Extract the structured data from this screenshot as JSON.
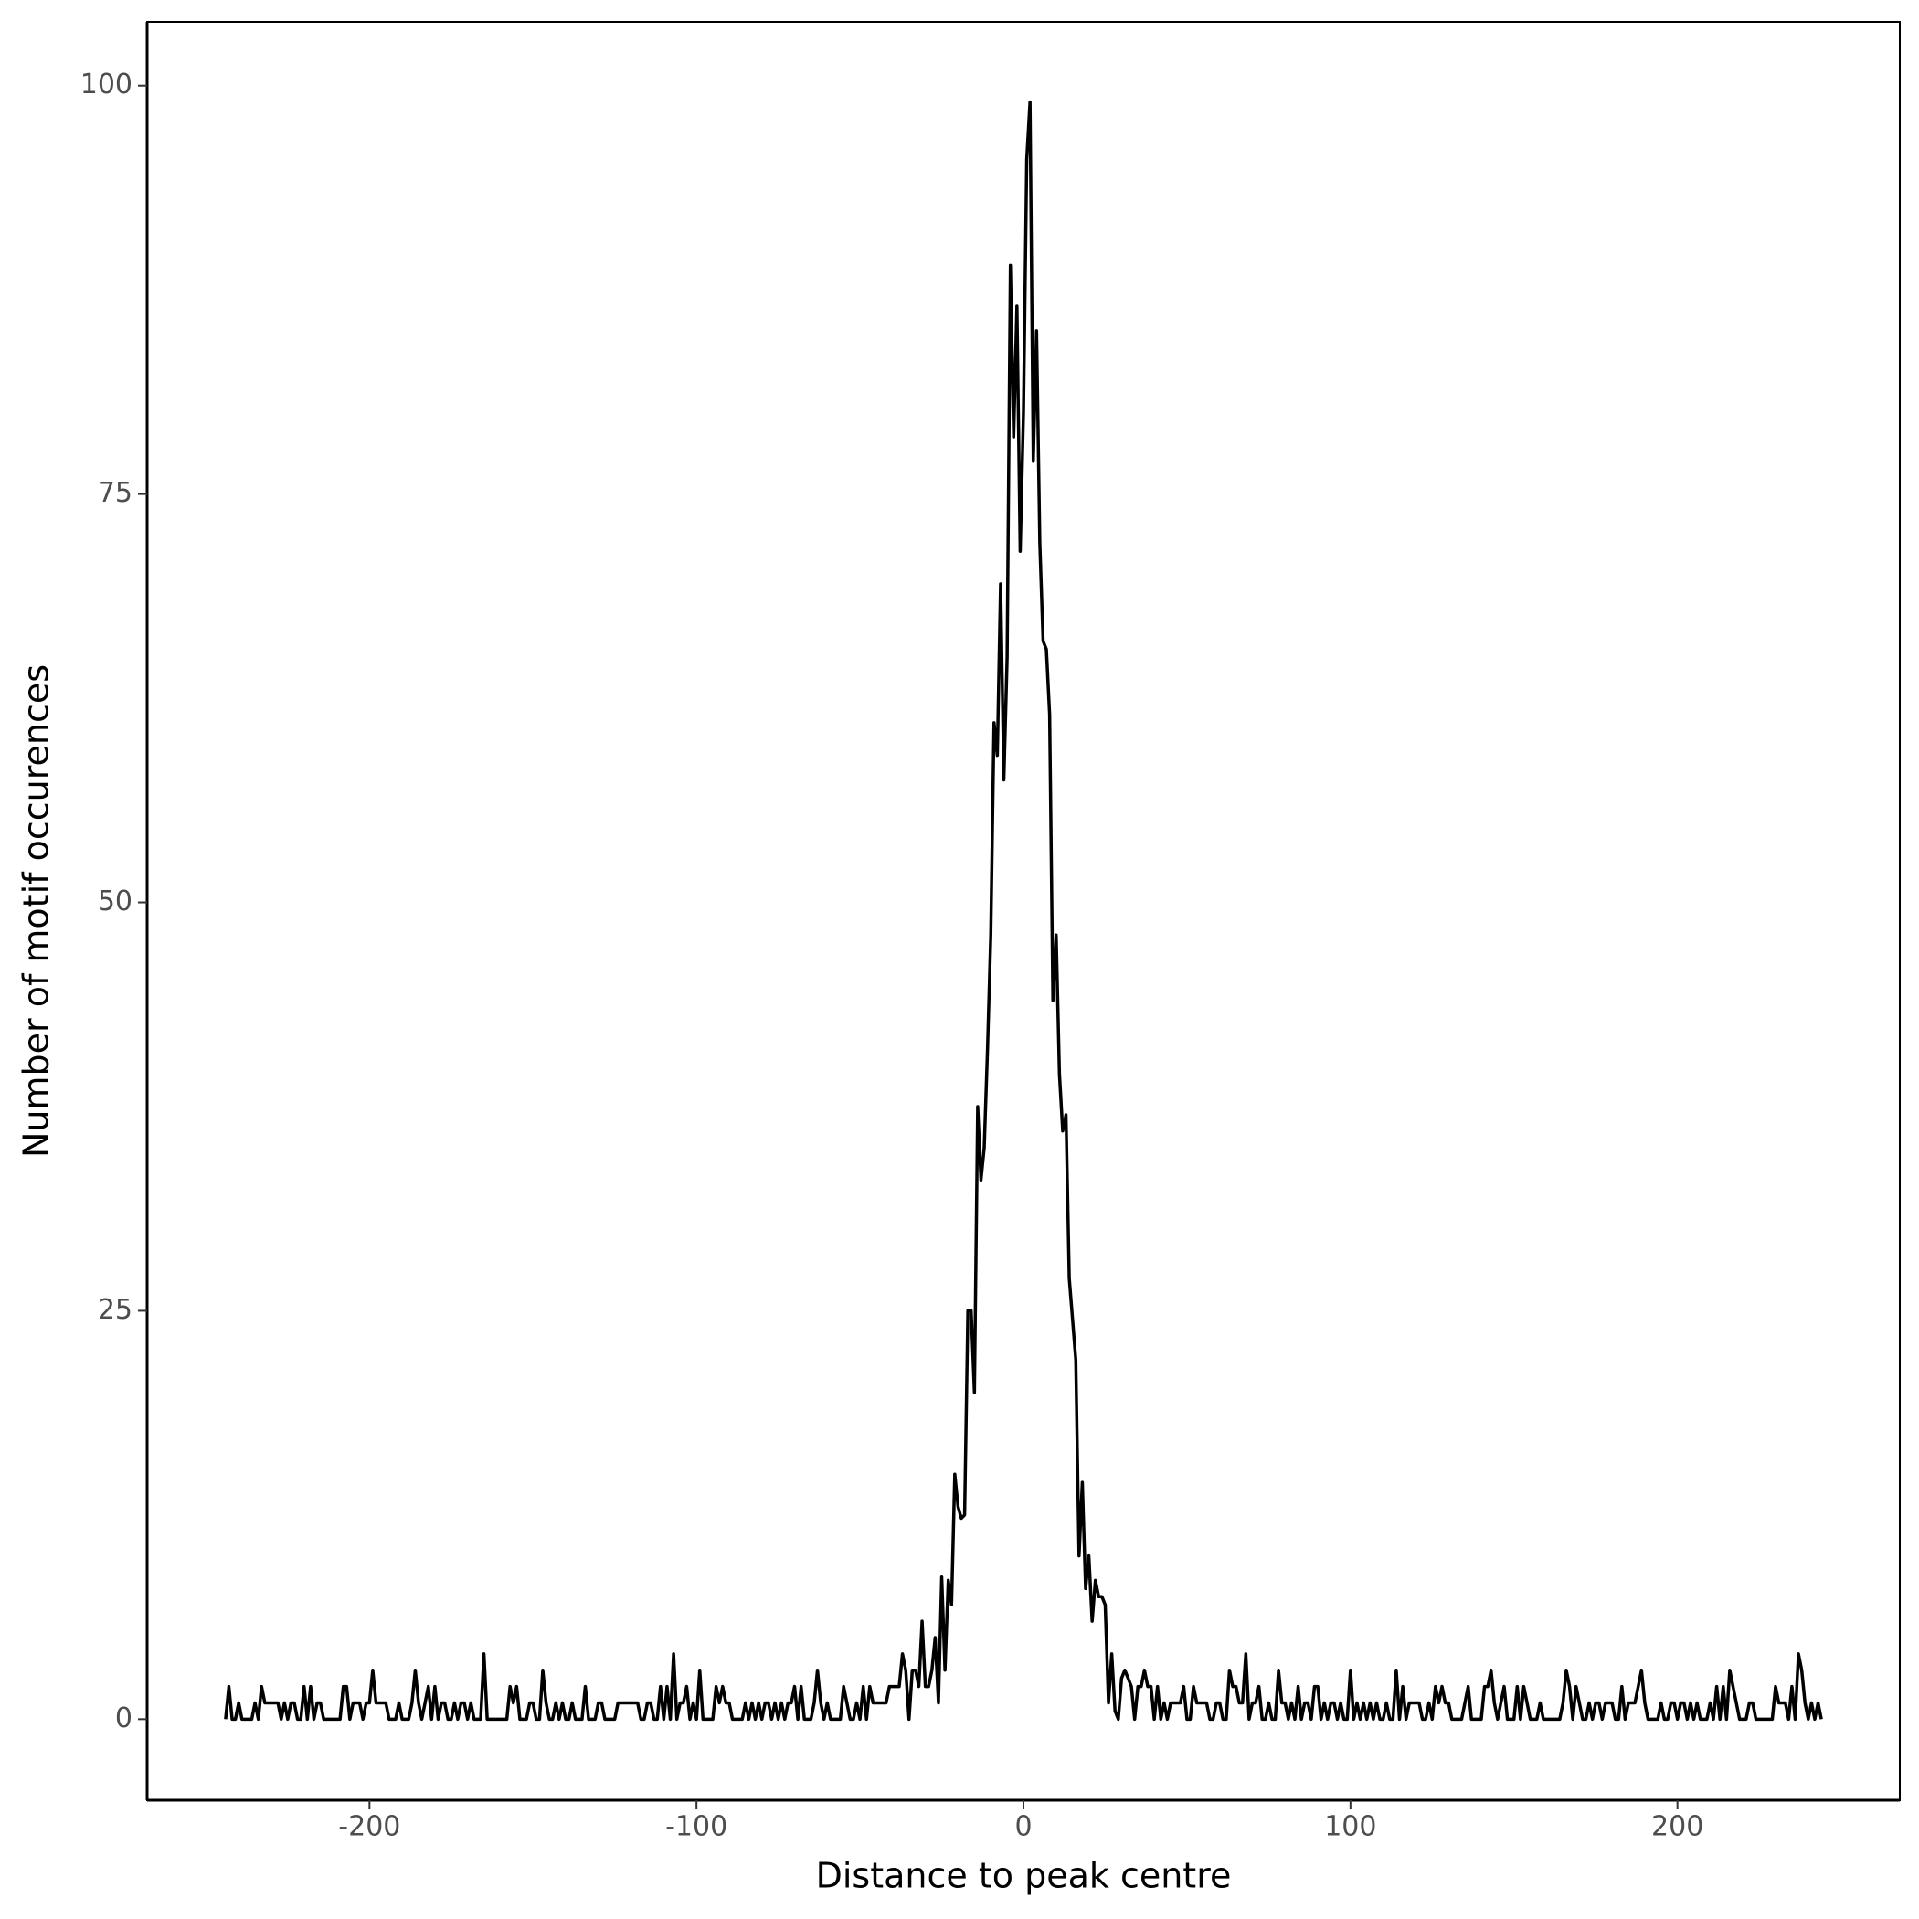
{
  "chart_data": {
    "type": "line",
    "x_label": "Distance to peak centre",
    "y_label": "Number of motif occurences",
    "color": "#000000",
    "grid": false,
    "xlim": [
      -268,
      268
    ],
    "ylim": [
      -4.96,
      103.9
    ],
    "xticks": [
      -200,
      -100,
      0,
      100,
      200
    ],
    "yticks": [
      0,
      25,
      50,
      75,
      100
    ],
    "x": [
      -244,
      -243,
      -242,
      -241,
      -240,
      -239,
      -238,
      -237,
      -236,
      -235,
      -234,
      -233,
      -232,
      -231,
      -230,
      -229,
      -228,
      -227,
      -226,
      -225,
      -224,
      -223,
      -222,
      -221,
      -220,
      -219,
      -218,
      -217,
      -216,
      -215,
      -214,
      -213,
      -212,
      -211,
      -210,
      -209,
      -208,
      -207,
      -206,
      -205,
      -204,
      -203,
      -202,
      -201,
      -200,
      -199,
      -198,
      -197,
      -196,
      -195,
      -194,
      -193,
      -192,
      -191,
      -190,
      -189,
      -188,
      -187,
      -186,
      -185,
      -184,
      -183,
      -182,
      -181,
      -180,
      -179,
      -178,
      -177,
      -176,
      -175,
      -174,
      -173,
      -172,
      -171,
      -170,
      -169,
      -168,
      -167,
      -166,
      -165,
      -164,
      -163,
      -162,
      -161,
      -160,
      -159,
      -158,
      -157,
      -156,
      -155,
      -154,
      -153,
      -152,
      -151,
      -150,
      -149,
      -148,
      -147,
      -146,
      -145,
      -144,
      -143,
      -142,
      -141,
      -140,
      -139,
      -138,
      -137,
      -136,
      -135,
      -134,
      -133,
      -132,
      -131,
      -130,
      -129,
      -128,
      -127,
      -126,
      -125,
      -124,
      -123,
      -122,
      -121,
      -120,
      -119,
      -118,
      -117,
      -116,
      -115,
      -114,
      -113,
      -112,
      -111,
      -110,
      -109,
      -108,
      -107,
      -106,
      -105,
      -104,
      -103,
      -102,
      -101,
      -100,
      -99,
      -98,
      -97,
      -96,
      -95,
      -94,
      -93,
      -92,
      -91,
      -90,
      -89,
      -88,
      -87,
      -86,
      -85,
      -84,
      -83,
      -82,
      -81,
      -80,
      -79,
      -78,
      -77,
      -76,
      -75,
      -74,
      -73,
      -72,
      -71,
      -70,
      -69,
      -68,
      -67,
      -66,
      -65,
      -64,
      -63,
      -62,
      -61,
      -60,
      -59,
      -58,
      -57,
      -56,
      -55,
      -54,
      -53,
      -52,
      -51,
      -50,
      -49,
      -48,
      -47,
      -46,
      -45,
      -44,
      -43,
      -42,
      -41,
      -40,
      -39,
      -38,
      -37,
      -36,
      -35,
      -34,
      -33,
      -32,
      -31,
      -30,
      -29,
      -28,
      -27,
      -26,
      -25,
      -24,
      -23,
      -22,
      -21,
      -20,
      -19,
      -18,
      -17,
      -16,
      -15,
      -14,
      -13,
      -12,
      -11,
      -10,
      -9,
      -8,
      -7,
      -6,
      -5,
      -4,
      -3,
      -2,
      -1,
      0,
      1,
      2,
      3,
      4,
      5,
      6,
      7,
      8,
      9,
      10,
      11,
      12,
      13,
      14,
      15,
      16,
      17,
      18,
      19,
      20,
      21,
      22,
      23,
      24,
      25,
      26,
      27,
      28,
      29,
      30,
      31,
      32,
      33,
      34,
      35,
      36,
      37,
      38,
      39,
      40,
      41,
      42,
      43,
      44,
      45,
      46,
      47,
      48,
      49,
      50,
      51,
      52,
      53,
      54,
      55,
      56,
      57,
      58,
      59,
      60,
      61,
      62,
      63,
      64,
      65,
      66,
      67,
      68,
      69,
      70,
      71,
      72,
      73,
      74,
      75,
      76,
      77,
      78,
      79,
      80,
      81,
      82,
      83,
      84,
      85,
      86,
      87,
      88,
      89,
      90,
      91,
      92,
      93,
      94,
      95,
      96,
      97,
      98,
      99,
      100,
      101,
      102,
      103,
      104,
      105,
      106,
      107,
      108,
      109,
      110,
      111,
      112,
      113,
      114,
      115,
      116,
      117,
      118,
      119,
      120,
      121,
      122,
      123,
      124,
      125,
      126,
      127,
      128,
      129,
      130,
      131,
      132,
      133,
      134,
      135,
      136,
      137,
      138,
      139,
      140,
      141,
      142,
      143,
      144,
      145,
      146,
      147,
      148,
      149,
      150,
      151,
      152,
      153,
      154,
      155,
      156,
      157,
      158,
      159,
      160,
      161,
      162,
      163,
      164,
      165,
      166,
      167,
      168,
      169,
      170,
      171,
      172,
      173,
      174,
      175,
      176,
      177,
      178,
      179,
      180,
      181,
      182,
      183,
      184,
      185,
      186,
      187,
      188,
      189,
      190,
      191,
      192,
      193,
      194,
      195,
      196,
      197,
      198,
      199,
      200,
      201,
      202,
      203,
      204,
      205,
      206,
      207,
      208,
      209,
      210,
      211,
      212,
      213,
      214,
      215,
      216,
      217,
      218,
      219,
      220,
      221,
      222,
      223,
      224,
      225,
      226,
      227,
      228,
      229,
      230,
      231,
      232,
      233,
      234,
      235,
      236,
      237,
      238,
      239,
      240,
      241,
      242,
      243,
      244
    ],
    "values": [
      0,
      2,
      0,
      0,
      1,
      0,
      0,
      0,
      0,
      1,
      0,
      2,
      1,
      1,
      1,
      1,
      1,
      0,
      1,
      0,
      1,
      1,
      0,
      0,
      2,
      0,
      2,
      0,
      1,
      1,
      0,
      0,
      0,
      0,
      0,
      0,
      2,
      2,
      0,
      1,
      1,
      1,
      0,
      1,
      1,
      3,
      1,
      1,
      1,
      1,
      0,
      0,
      0,
      1,
      0,
      0,
      0,
      1,
      3,
      1,
      0,
      1,
      2,
      0,
      2,
      0,
      1,
      1,
      0,
      0,
      1,
      0,
      1,
      1,
      0,
      1,
      0,
      0,
      0,
      4,
      0,
      0,
      0,
      0,
      0,
      0,
      0,
      2,
      1,
      2,
      0,
      0,
      0,
      1,
      1,
      0,
      0,
      3,
      1,
      0,
      0,
      1,
      0,
      1,
      0,
      0,
      1,
      0,
      0,
      0,
      2,
      0,
      0,
      0,
      1,
      1,
      0,
      0,
      0,
      0,
      1,
      1,
      1,
      1,
      1,
      1,
      1,
      0,
      0,
      1,
      1,
      0,
      0,
      2,
      0,
      2,
      0,
      4,
      0,
      1,
      1,
      2,
      0,
      1,
      0,
      3,
      0,
      0,
      0,
      0,
      2,
      1,
      2,
      1,
      1,
      0,
      0,
      0,
      0,
      1,
      0,
      1,
      0,
      1,
      0,
      1,
      1,
      0,
      1,
      0,
      1,
      0,
      1,
      1,
      2,
      0,
      2,
      0,
      0,
      0,
      1,
      3,
      1,
      0,
      1,
      0,
      0,
      0,
      0,
      2,
      1,
      0,
      0,
      1,
      0,
      2,
      0,
      2,
      1,
      1,
      1,
      1,
      1,
      2,
      2,
      2,
      2,
      4,
      3,
      0,
      3,
      3,
      2,
      6,
      2,
      2,
      3,
      5,
      1,
      8.7,
      3,
      8.5,
      7,
      15,
      13,
      12.3,
      12.5,
      25,
      25,
      20,
      37.5,
      33,
      35,
      41,
      48,
      61,
      59,
      69.5,
      57.5,
      65,
      89,
      78.5,
      86.5,
      71.5,
      80,
      95.5,
      99,
      77,
      85,
      72,
      66,
      65.5,
      61.5,
      44,
      48,
      39.5,
      36,
      37,
      27,
      24.5,
      22,
      10,
      14.5,
      8,
      10,
      6,
      8.5,
      7.5,
      7.5,
      7,
      1,
      4,
      0.5,
      0,
      2.5,
      3,
      2.5,
      2,
      0,
      2,
      2,
      3,
      2,
      2,
      0,
      2,
      0,
      1,
      0,
      1,
      1,
      1,
      1,
      2,
      0,
      0,
      2,
      1,
      1,
      1,
      1,
      0,
      0,
      1,
      1,
      0,
      0,
      3,
      2,
      2,
      1,
      1,
      4,
      0,
      1,
      1,
      2,
      0,
      0,
      1,
      0,
      0,
      3,
      1,
      1,
      0,
      1,
      0,
      2,
      0,
      1,
      1,
      0,
      2,
      2,
      0,
      1,
      0,
      1,
      1,
      0,
      1,
      0,
      0,
      3,
      0,
      1,
      0,
      1,
      0,
      1,
      0,
      1,
      0,
      0,
      1,
      0,
      0,
      3,
      0,
      2,
      0,
      1,
      1,
      1,
      1,
      0,
      0,
      1,
      0,
      2,
      1,
      2,
      1,
      1,
      0,
      0,
      0,
      0,
      1,
      2,
      0,
      0,
      0,
      0,
      2,
      2,
      3,
      1,
      0,
      1,
      2,
      0,
      0,
      0,
      2,
      0,
      2,
      1,
      0,
      0,
      0,
      1,
      0,
      0,
      0,
      0,
      0,
      0,
      1,
      3,
      2,
      0,
      2,
      1,
      0,
      0,
      1,
      0,
      1,
      1,
      0,
      1,
      1,
      1,
      0,
      0,
      2,
      0,
      1,
      1,
      1,
      2,
      3,
      1,
      0,
      0,
      0,
      0,
      1,
      0,
      0,
      1,
      1,
      0,
      1,
      1,
      0,
      1,
      0,
      1,
      0,
      0,
      0,
      1,
      0,
      2,
      0,
      2,
      0,
      3,
      2,
      1,
      0,
      0,
      0,
      1,
      1,
      0,
      0,
      0,
      0,
      0,
      0,
      2,
      1,
      1,
      1,
      0,
      2,
      0,
      4,
      3,
      1,
      0,
      1,
      0,
      1,
      0
    ]
  }
}
